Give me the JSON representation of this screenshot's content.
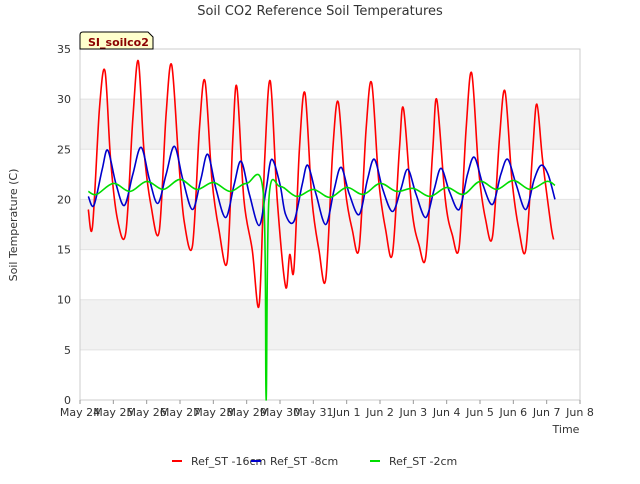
{
  "chart_data": {
    "type": "line",
    "title": "Soil CO2 Reference Soil Temperatures",
    "xlabel": "Time",
    "ylabel": "Soil Temperature (C)",
    "badge": "SI_soilco2",
    "ylim": [
      0,
      35
    ],
    "yticks": [
      0,
      5,
      10,
      15,
      20,
      25,
      30,
      35
    ],
    "xlim": [
      "May 24",
      "Jun 8"
    ],
    "xticks": [
      "May 24",
      "May 25",
      "May 26",
      "May 27",
      "May 28",
      "May 29",
      "May 30",
      "May 31",
      "Jun 1",
      "Jun 2",
      "Jun 3",
      "Jun 4",
      "Jun 5",
      "Jun 6",
      "Jun 7",
      "Jun 8"
    ],
    "x_days_note_hidden": "",
    "grid": "horizontal bands",
    "legend_position": "bottom",
    "series": [
      {
        "name": "Ref_ST -16cm",
        "color": "#ff0000",
        "points": [
          [
            "May 24 06:00",
            19.0
          ],
          [
            "May 24 09:00",
            17.3
          ],
          [
            "May 24 14:00",
            29.0
          ],
          [
            "May 24 18:00",
            32.8
          ],
          [
            "May 24 22:00",
            24.0
          ],
          [
            "May 25 03:00",
            18.0
          ],
          [
            "May 25 09:00",
            16.7
          ],
          [
            "May 25 14:00",
            28.0
          ],
          [
            "May 25 18:00",
            33.8
          ],
          [
            "May 25 22:00",
            25.0
          ],
          [
            "May 26 03:00",
            19.5
          ],
          [
            "May 26 09:00",
            16.8
          ],
          [
            "May 26 14:00",
            28.5
          ],
          [
            "May 26 18:00",
            33.4
          ],
          [
            "May 26 23:00",
            24.0
          ],
          [
            "May 27 03:00",
            17.8
          ],
          [
            "May 27 09:00",
            15.4
          ],
          [
            "May 27 14:00",
            27.0
          ],
          [
            "May 27 18:00",
            31.8
          ],
          [
            "May 27 23:00",
            22.0
          ],
          [
            "May 28 04:00",
            17.0
          ],
          [
            "May 28 10:00",
            13.8
          ],
          [
            "May 28 14:00",
            26.0
          ],
          [
            "May 28 17:00",
            31.2
          ],
          [
            "May 28 22:00",
            20.0
          ],
          [
            "May 29 04:00",
            15.0
          ],
          [
            "May 29 09:00",
            9.5
          ],
          [
            "May 29 13:00",
            24.0
          ],
          [
            "May 29 17:00",
            31.8
          ],
          [
            "May 29 22:00",
            20.0
          ],
          [
            "May 30 04:00",
            11.3
          ],
          [
            "May 30 07:00",
            14.5
          ],
          [
            "May 30 10:00",
            13.0
          ],
          [
            "May 30 14:00",
            25.0
          ],
          [
            "May 30 18:00",
            30.6
          ],
          [
            "May 30 23:00",
            20.0
          ],
          [
            "May 31 04:00",
            15.0
          ],
          [
            "May 31 09:00",
            12.1
          ],
          [
            "May 31 14:00",
            25.0
          ],
          [
            "May 31 18:00",
            29.7
          ],
          [
            "May 31 23:00",
            21.0
          ],
          [
            "Jun 1 04:00",
            17.0
          ],
          [
            "Jun 1 09:00",
            15.2
          ],
          [
            "Jun 1 14:00",
            27.0
          ],
          [
            "Jun 1 18:00",
            31.6
          ],
          [
            "Jun 1 23:00",
            22.0
          ],
          [
            "Jun 2 04:00",
            17.0
          ],
          [
            "Jun 2 09:00",
            14.6
          ],
          [
            "Jun 2 14:00",
            25.0
          ],
          [
            "Jun 2 17:00",
            29.0
          ],
          [
            "Jun 2 23:00",
            19.0
          ],
          [
            "Jun 3 04:00",
            15.5
          ],
          [
            "Jun 3 09:00",
            14.3
          ],
          [
            "Jun 3 14:00",
            25.0
          ],
          [
            "Jun 3 17:00",
            29.9
          ],
          [
            "Jun 3 23:00",
            20.0
          ],
          [
            "Jun 4 04:00",
            16.5
          ],
          [
            "Jun 4 09:00",
            15.3
          ],
          [
            "Jun 4 14:00",
            27.0
          ],
          [
            "Jun 4 18:00",
            32.6
          ],
          [
            "Jun 4 23:00",
            23.0
          ],
          [
            "Jun 5 04:00",
            18.0
          ],
          [
            "Jun 5 09:00",
            16.3
          ],
          [
            "Jun 5 14:00",
            26.0
          ],
          [
            "Jun 5 18:00",
            30.8
          ],
          [
            "Jun 5 23:00",
            22.0
          ],
          [
            "Jun 6 04:00",
            17.0
          ],
          [
            "Jun 6 09:00",
            15.0
          ],
          [
            "Jun 6 14:00",
            25.0
          ],
          [
            "Jun 6 17:00",
            29.5
          ],
          [
            "Jun 6 21:00",
            24.0
          ],
          [
            "Jun 7 03:00",
            17.5
          ],
          [
            "Jun 7 05:00",
            16.0
          ]
        ]
      },
      {
        "name": "Ref_ST -8cm",
        "color": "#0000cc",
        "points": [
          [
            "May 24 06:00",
            20.3
          ],
          [
            "May 24 10:00",
            19.4
          ],
          [
            "May 24 16:00",
            23.0
          ],
          [
            "May 24 20:00",
            24.9
          ],
          [
            "May 25 02:00",
            21.5
          ],
          [
            "May 25 08:00",
            19.4
          ],
          [
            "May 25 14:00",
            22.5
          ],
          [
            "May 25 20:00",
            25.2
          ],
          [
            "May 26 02:00",
            22.0
          ],
          [
            "May 26 08:00",
            19.6
          ],
          [
            "May 26 14:00",
            22.5
          ],
          [
            "May 26 20:00",
            25.3
          ],
          [
            "May 27 02:00",
            22.0
          ],
          [
            "May 27 09:00",
            19.0
          ],
          [
            "May 27 15:00",
            22.0
          ],
          [
            "May 27 20:00",
            24.5
          ],
          [
            "May 28 02:00",
            21.0
          ],
          [
            "May 28 09:00",
            18.2
          ],
          [
            "May 28 15:00",
            21.5
          ],
          [
            "May 28 20:00",
            23.8
          ],
          [
            "May 29 02:00",
            20.5
          ],
          [
            "May 29 09:00",
            17.4
          ],
          [
            "May 29 14:00",
            21.0
          ],
          [
            "May 29 18:00",
            24.0
          ],
          [
            "May 30 00:00",
            21.5
          ],
          [
            "May 30 04:00",
            18.5
          ],
          [
            "May 30 10:00",
            17.8
          ],
          [
            "May 30 16:00",
            21.5
          ],
          [
            "May 30 20:00",
            23.4
          ],
          [
            "May 31 02:00",
            20.5
          ],
          [
            "May 31 09:00",
            17.5
          ],
          [
            "May 31 15:00",
            21.0
          ],
          [
            "May 31 20:00",
            23.2
          ],
          [
            "Jun 1 02:00",
            20.5
          ],
          [
            "Jun 1 09:00",
            18.5
          ],
          [
            "Jun 1 15:00",
            22.0
          ],
          [
            "Jun 1 20:00",
            24.0
          ],
          [
            "Jun 2 02:00",
            21.0
          ],
          [
            "Jun 2 09:00",
            18.8
          ],
          [
            "Jun 2 15:00",
            21.0
          ],
          [
            "Jun 2 20:00",
            23.0
          ],
          [
            "Jun 3 02:00",
            20.5
          ],
          [
            "Jun 3 09:00",
            18.2
          ],
          [
            "Jun 3 15:00",
            21.0
          ],
          [
            "Jun 3 20:00",
            23.1
          ],
          [
            "Jun 4 02:00",
            20.8
          ],
          [
            "Jun 4 09:00",
            19.0
          ],
          [
            "Jun 4 15:00",
            22.5
          ],
          [
            "Jun 4 20:00",
            24.2
          ],
          [
            "Jun 5 02:00",
            21.5
          ],
          [
            "Jun 5 09:00",
            19.5
          ],
          [
            "Jun 5 15:00",
            22.5
          ],
          [
            "Jun 5 20:00",
            24.0
          ],
          [
            "Jun 6 02:00",
            21.5
          ],
          [
            "Jun 6 09:00",
            19.0
          ],
          [
            "Jun 6 15:00",
            22.0
          ],
          [
            "Jun 6 20:00",
            23.4
          ],
          [
            "Jun 7 01:00",
            22.5
          ],
          [
            "Jun 7 06:00",
            20.0
          ]
        ]
      },
      {
        "name": "Ref_ST -2cm",
        "color": "#00dd00",
        "points": [
          [
            "May 24 06:00",
            20.8
          ],
          [
            "May 24 12:00",
            20.5
          ],
          [
            "May 25 00:00",
            21.6
          ],
          [
            "May 25 12:00",
            20.8
          ],
          [
            "May 26 00:00",
            21.8
          ],
          [
            "May 26 12:00",
            21.0
          ],
          [
            "May 27 00:00",
            22.0
          ],
          [
            "May 27 12:00",
            21.0
          ],
          [
            "May 28 00:00",
            21.7
          ],
          [
            "May 28 12:00",
            20.8
          ],
          [
            "May 29 00:00",
            21.6
          ],
          [
            "May 29 12:00",
            20.6
          ],
          [
            "May 29 14:00",
            0.0
          ],
          [
            "May 29 16:00",
            20.0
          ],
          [
            "May 30 00:00",
            21.3
          ],
          [
            "May 30 12:00",
            20.3
          ],
          [
            "May 31 00:00",
            21.0
          ],
          [
            "May 31 12:00",
            20.2
          ],
          [
            "Jun 1 00:00",
            21.2
          ],
          [
            "Jun 1 12:00",
            20.5
          ],
          [
            "Jun 2 00:00",
            21.6
          ],
          [
            "Jun 2 12:00",
            20.8
          ],
          [
            "Jun 3 00:00",
            21.1
          ],
          [
            "Jun 3 12:00",
            20.3
          ],
          [
            "Jun 4 00:00",
            21.2
          ],
          [
            "Jun 4 12:00",
            20.5
          ],
          [
            "Jun 5 00:00",
            21.8
          ],
          [
            "Jun 5 12:00",
            21.0
          ],
          [
            "Jun 6 00:00",
            21.9
          ],
          [
            "Jun 6 12:00",
            21.0
          ],
          [
            "Jun 7 00:00",
            21.8
          ],
          [
            "Jun 7 06:00",
            21.4
          ]
        ]
      }
    ]
  }
}
